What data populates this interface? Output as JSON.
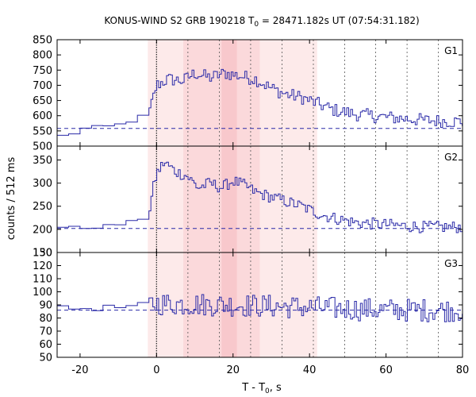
{
  "chart_data": {
    "type": "line",
    "title_main": "KONUS-WIND S2 GRB 190218 T",
    "title_sub": "0",
    "title_rest": " = 28471.182s UT (07:54:31.182)",
    "xlabel_main": "T - T",
    "xlabel_sub": "0",
    "xlabel_rest": ", s",
    "ylabel": "counts / 512 ms",
    "xlim": [
      -26,
      80
    ],
    "xticks": [
      -20,
      0,
      20,
      40,
      60,
      80
    ],
    "bin_width_s": 0.512,
    "shade_light": [
      -2.3,
      42
    ],
    "shade_mid": [
      7,
      27
    ],
    "shade_dark": [
      17,
      21
    ],
    "vlines_solid": [
      0
    ],
    "vlines_dotted": [
      8.2,
      16.4,
      24.6,
      32.8,
      41,
      49.2,
      57.3,
      65.5,
      73.7
    ],
    "colors": {
      "series": "#2a2aa8",
      "background_dashed": "#2a2aa8",
      "shade_light": "#fdeaea",
      "shade_mid": "#fbd9db",
      "shade_dark": "#f8c8cc"
    },
    "panels": [
      {
        "name": "G1",
        "ylim": [
          500,
          850
        ],
        "yticks": [
          500,
          550,
          600,
          650,
          700,
          750,
          800,
          850
        ],
        "background": 558,
        "profile": [
          [
            -26,
            530
          ],
          [
            -22,
            540
          ],
          [
            -18,
            560
          ],
          [
            -12,
            565
          ],
          [
            -8,
            575
          ],
          [
            -5,
            590
          ],
          [
            -2,
            605
          ],
          [
            -1,
            650
          ],
          [
            0,
            700
          ],
          [
            3,
            720
          ],
          [
            7,
            715
          ],
          [
            10,
            740
          ],
          [
            14,
            725
          ],
          [
            18,
            740
          ],
          [
            22,
            730
          ],
          [
            26,
            720
          ],
          [
            30,
            690
          ],
          [
            34,
            670
          ],
          [
            38,
            660
          ],
          [
            42,
            640
          ],
          [
            46,
            620
          ],
          [
            52,
            605
          ],
          [
            60,
            595
          ],
          [
            70,
            585
          ],
          [
            80,
            580
          ]
        ],
        "noise": 22
      },
      {
        "name": "G2",
        "ylim": [
          150,
          380
        ],
        "yticks": [
          150,
          200,
          250,
          300,
          350
        ],
        "background": 202,
        "profile": [
          [
            -26,
            205
          ],
          [
            -18,
            203
          ],
          [
            -10,
            210
          ],
          [
            -4,
            220
          ],
          [
            -2,
            235
          ],
          [
            -1,
            280
          ],
          [
            0,
            320
          ],
          [
            2,
            345
          ],
          [
            5,
            325
          ],
          [
            8,
            315
          ],
          [
            11,
            290
          ],
          [
            14,
            300
          ],
          [
            17,
            290
          ],
          [
            20,
            305
          ],
          [
            23,
            295
          ],
          [
            26,
            280
          ],
          [
            30,
            270
          ],
          [
            34,
            260
          ],
          [
            38,
            250
          ],
          [
            42,
            235
          ],
          [
            46,
            225
          ],
          [
            52,
            215
          ],
          [
            60,
            210
          ],
          [
            70,
            205
          ],
          [
            80,
            205
          ]
        ],
        "noise": 13
      },
      {
        "name": "G3",
        "ylim": [
          50,
          130
        ],
        "yticks": [
          50,
          60,
          70,
          80,
          90,
          100,
          110,
          120,
          130
        ],
        "background": 86,
        "profile": [
          [
            -26,
            87
          ],
          [
            -10,
            88
          ],
          [
            -2,
            90
          ],
          [
            0,
            91
          ],
          [
            20,
            90
          ],
          [
            40,
            88
          ],
          [
            60,
            86
          ],
          [
            80,
            86
          ]
        ],
        "noise": 9
      }
    ]
  }
}
